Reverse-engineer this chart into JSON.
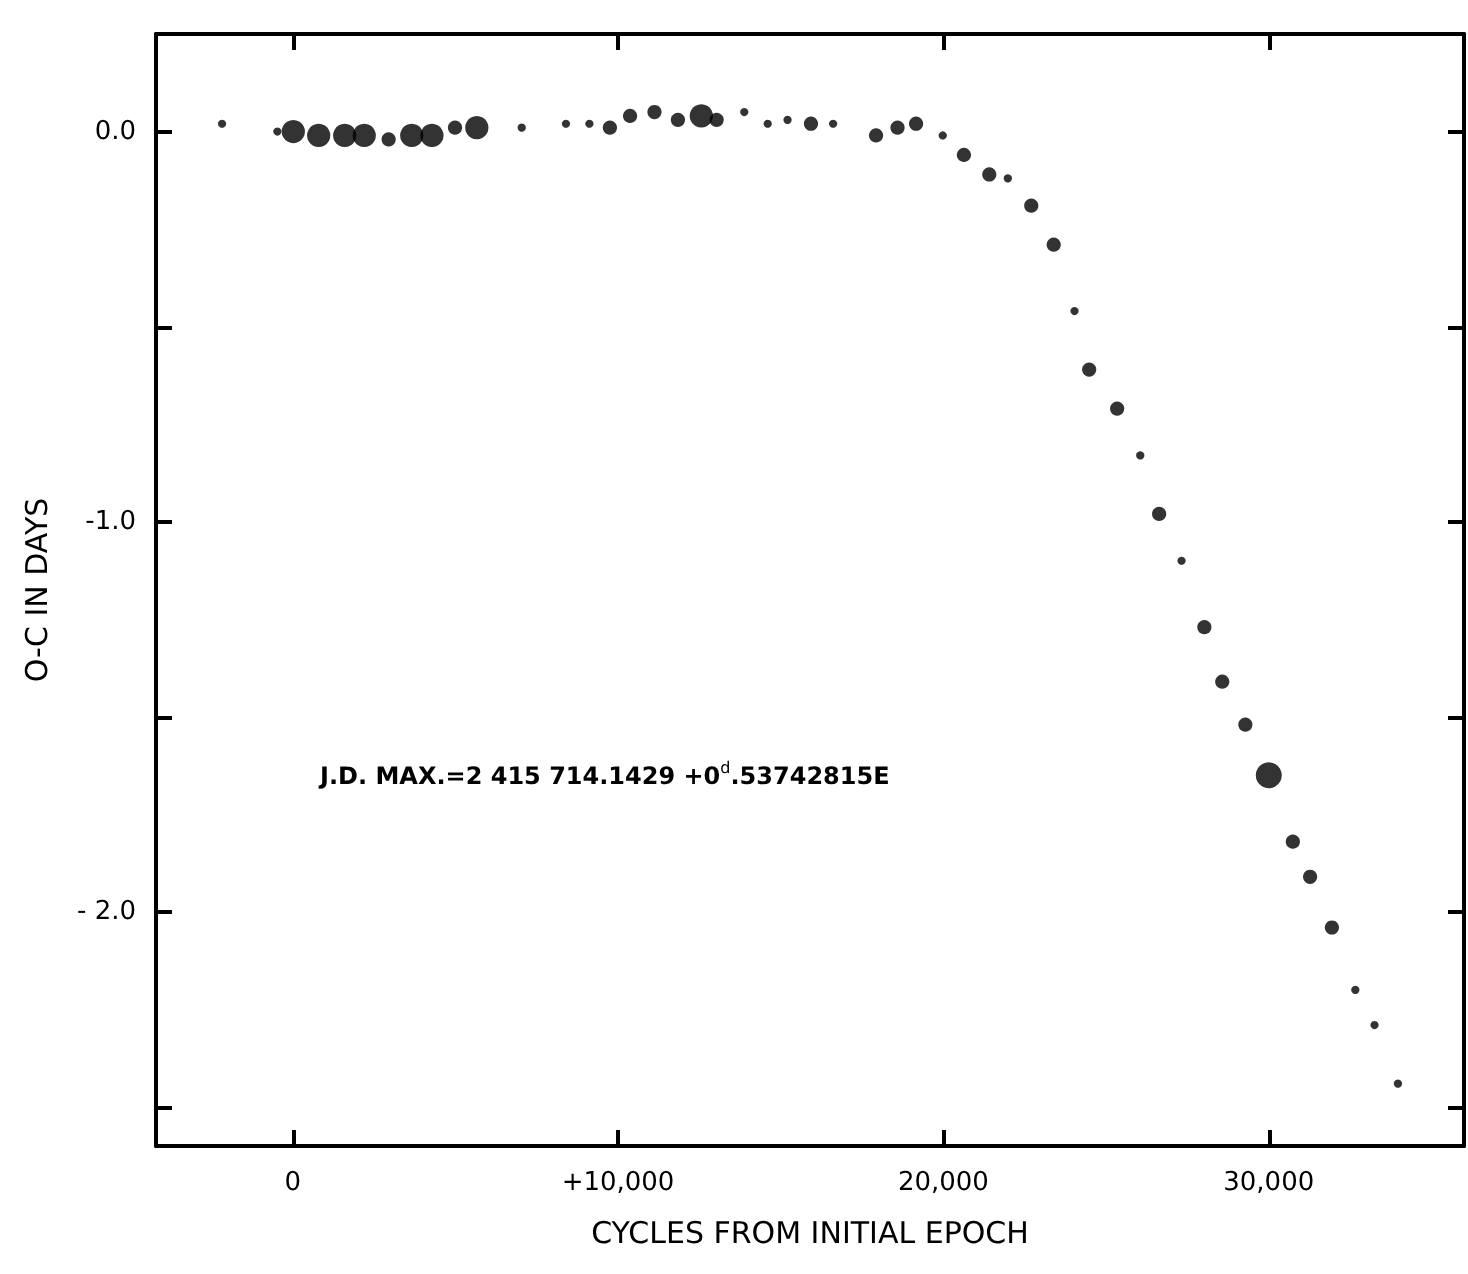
{
  "chart_data": {
    "type": "bubble",
    "xlabel": "CYCLES FROM INITIAL EPOCH",
    "ylabel": "O-C IN DAYS",
    "annotations": [
      "J.D. MAX.=2 415 714.1429 +0$^{d}$.53742815E"
    ],
    "xlim": [
      -4200,
      36000
    ],
    "ylim": [
      -2.6,
      0.25
    ],
    "xticks": [
      {
        "value": 0,
        "label": "0"
      },
      {
        "value": 10000,
        "label": "+10,000"
      },
      {
        "value": 20000,
        "label": "20,000"
      },
      {
        "value": 30000,
        "label": "30,000"
      }
    ],
    "yticks": [
      {
        "value": 0,
        "label": "0.0"
      },
      {
        "value": -0.5,
        "label": null
      },
      {
        "value": -1,
        "label": "-1.0"
      },
      {
        "value": -1.5,
        "label": null
      },
      {
        "value": -2,
        "label": "- 2.0"
      },
      {
        "value": -2.5,
        "label": null
      }
    ],
    "grid": false,
    "marker": "circle",
    "series": [
      {
        "color": "#000000",
        "x": [
          -2170,
          -470,
          20,
          800,
          1600,
          2200,
          2950,
          3660,
          4280,
          4990,
          5660,
          7040,
          8400,
          9120,
          9750,
          10370,
          11120,
          11840,
          12560,
          13030,
          13880,
          14600,
          15210,
          15930,
          16610,
          17930,
          18590,
          19160,
          19980,
          20630,
          21410,
          21980,
          22700,
          23390,
          24030,
          24480,
          25340,
          26050,
          26630,
          27320,
          28020,
          28570,
          29280,
          30000,
          30740,
          31270,
          31940,
          32660,
          33250,
          33970
        ],
        "values": [
          0.02,
          0.0,
          0.0,
          -0.01,
          -0.01,
          -0.01,
          -0.02,
          -0.01,
          -0.01,
          0.01,
          0.01,
          0.01,
          0.02,
          0.02,
          0.01,
          0.04,
          0.05,
          0.03,
          0.04,
          0.03,
          0.05,
          0.02,
          0.03,
          0.02,
          0.02,
          -0.01,
          0.01,
          0.02,
          -0.01,
          -0.06,
          -0.11,
          -0.12,
          -0.19,
          -0.29,
          -0.46,
          -0.61,
          -0.71,
          -0.83,
          -0.98,
          -1.1,
          -1.27,
          -1.41,
          -1.52,
          -1.65,
          -1.82,
          -1.91,
          -2.04,
          -2.2,
          -2.29,
          -2.44
        ],
        "sizes": [
          0.1,
          0.1,
          0.8,
          0.8,
          0.8,
          0.8,
          0.3,
          0.8,
          0.8,
          0.3,
          0.8,
          0.1,
          0.1,
          0.1,
          0.3,
          0.3,
          0.3,
          0.3,
          0.8,
          0.3,
          0.1,
          0.1,
          0.1,
          0.3,
          0.1,
          0.3,
          0.3,
          0.3,
          0.1,
          0.3,
          0.3,
          0.1,
          0.3,
          0.3,
          0.1,
          0.3,
          0.3,
          0.1,
          0.3,
          0.1,
          0.3,
          0.3,
          0.3,
          1,
          0.3,
          0.3,
          0.3,
          0.1,
          0.1,
          0.1
        ]
      }
    ]
  }
}
